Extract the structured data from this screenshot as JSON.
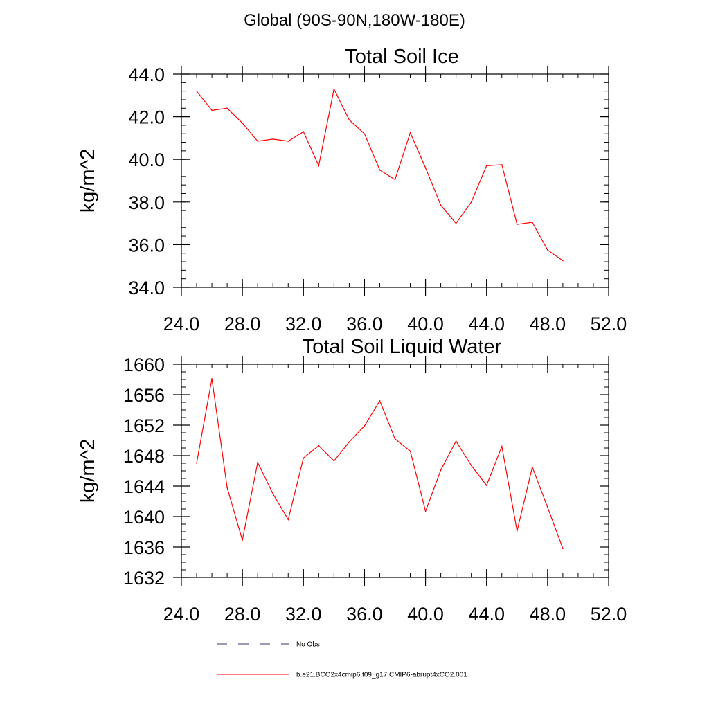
{
  "page_title": "Global (90S-90N,180W-180E)",
  "legend": [
    {
      "label": "No Obs",
      "color": "#31356e",
      "dash": true
    },
    {
      "label": "b.e21.BCO2x4cmip6.f09_g17.CMIP6-abrupt4xCO2.001",
      "color": "#ff0000",
      "dash": false
    }
  ],
  "chart_data": [
    {
      "type": "line",
      "title": "Total Soil Ice",
      "xlabel": "",
      "ylabel": "kg/m^2",
      "xlim": [
        24,
        52
      ],
      "ylim": [
        34,
        44
      ],
      "x_ticks": [
        24,
        28,
        32,
        36,
        40,
        44,
        48,
        52
      ],
      "x_tick_labels": [
        "24.0",
        "28.0",
        "32.0",
        "36.0",
        "40.0",
        "44.0",
        "48.0",
        "52.0"
      ],
      "y_ticks": [
        34,
        36,
        38,
        40,
        42,
        44
      ],
      "y_tick_labels": [
        "34.0",
        "36.0",
        "38.0",
        "40.0",
        "42.0",
        "44.0"
      ],
      "y_minor_step": 0.4,
      "x_minor_step": 1,
      "series": [
        {
          "color": "#ff0000",
          "x": [
            25,
            26,
            27,
            28,
            29,
            30,
            31,
            32,
            33,
            34,
            35,
            36,
            37,
            38,
            39,
            40,
            41,
            42,
            43,
            44,
            45,
            46,
            47,
            48,
            49
          ],
          "values": [
            43.2,
            42.3,
            42.4,
            41.7,
            40.85,
            40.95,
            40.85,
            41.3,
            39.7,
            43.3,
            41.85,
            41.2,
            39.5,
            39.05,
            41.25,
            39.6,
            37.85,
            37.0,
            38.0,
            39.7,
            39.75,
            36.95,
            37.05,
            35.75,
            35.25
          ]
        }
      ]
    },
    {
      "type": "line",
      "title": "Total Soil Liquid Water",
      "xlabel": "",
      "ylabel": "kg/m^2",
      "xlim": [
        24,
        52
      ],
      "ylim": [
        1632,
        1660
      ],
      "x_ticks": [
        24,
        28,
        32,
        36,
        40,
        44,
        48,
        52
      ],
      "x_tick_labels": [
        "24.0",
        "28.0",
        "32.0",
        "36.0",
        "40.0",
        "44.0",
        "48.0",
        "52.0"
      ],
      "y_ticks": [
        1632,
        1636,
        1640,
        1644,
        1648,
        1652,
        1656,
        1660
      ],
      "y_tick_labels": [
        "1632",
        "1636",
        "1640",
        "1644",
        "1648",
        "1652",
        "1656",
        "1660"
      ],
      "y_minor_step": 1,
      "x_minor_step": 1,
      "series": [
        {
          "color": "#ff0000",
          "x": [
            25,
            26,
            27,
            28,
            29,
            30,
            31,
            32,
            33,
            34,
            35,
            36,
            37,
            38,
            39,
            40,
            41,
            42,
            43,
            44,
            45,
            46,
            47,
            48,
            49
          ],
          "values": [
            1647.0,
            1658.1,
            1643.8,
            1636.9,
            1647.1,
            1643.0,
            1639.6,
            1647.7,
            1649.3,
            1647.3,
            1649.8,
            1651.9,
            1655.2,
            1650.2,
            1648.6,
            1640.7,
            1646.1,
            1649.9,
            1646.7,
            1644.1,
            1649.2,
            1638.1,
            1646.5,
            1641.2,
            1635.8
          ]
        }
      ]
    }
  ]
}
